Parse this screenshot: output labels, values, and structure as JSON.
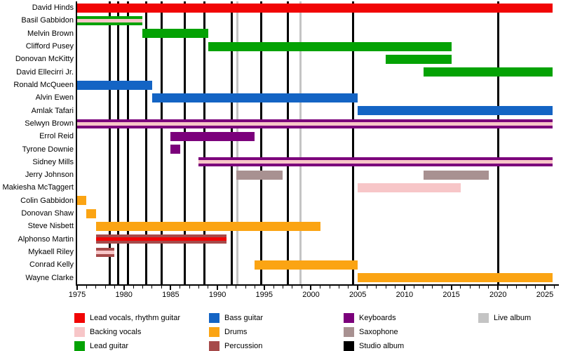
{
  "chart_data": {
    "type": "bar",
    "subtype": "band-membership-timeline",
    "xlim": [
      1975,
      2026.5
    ],
    "major_ticks": [
      1975,
      1980,
      1985,
      1990,
      1995,
      2000,
      2005,
      2010,
      2015,
      2020,
      2025
    ],
    "minor_tick_step": 1,
    "present_year": 2025.8,
    "grid": "album release vertical lines",
    "legend_position": "bottom",
    "colors": {
      "lead_vocals": "#f10505",
      "backing_vocals": "#f7c6c8",
      "lead_guitar": "#04a204",
      "bass_guitar": "#1464c4",
      "drums": "#fba413",
      "percussion": "#a64a4a",
      "keyboards": "#7b007b",
      "saxophone": "#a89191",
      "studio_album": "#000000",
      "live_album": "#c4c4c4"
    },
    "members": [
      {
        "name": "David Hinds",
        "bars": [
          {
            "start": 1975,
            "end": "present",
            "color": "lead_vocals"
          }
        ]
      },
      {
        "name": "Basil Gabbidon",
        "bars": [
          {
            "start": 1975,
            "end": 1982,
            "color": "lead_guitar",
            "stripe": "backing_vocals"
          }
        ]
      },
      {
        "name": "Melvin Brown",
        "bars": [
          {
            "start": 1982,
            "end": 1989,
            "color": "lead_guitar"
          }
        ]
      },
      {
        "name": "Clifford Pusey",
        "bars": [
          {
            "start": 1989,
            "end": 2015,
            "color": "lead_guitar"
          }
        ]
      },
      {
        "name": "Donovan McKitty",
        "bars": [
          {
            "start": 2008,
            "end": 2015,
            "color": "lead_guitar"
          }
        ]
      },
      {
        "name": "David Ellecirri Jr.",
        "bars": [
          {
            "start": 2012,
            "end": "present",
            "color": "lead_guitar"
          }
        ]
      },
      {
        "name": "Ronald McQueen",
        "bars": [
          {
            "start": 1975,
            "end": 1983,
            "color": "bass_guitar"
          }
        ]
      },
      {
        "name": "Alvin Ewen",
        "bars": [
          {
            "start": 1983,
            "end": 2005,
            "color": "bass_guitar"
          }
        ]
      },
      {
        "name": "Amlak Tafari",
        "bars": [
          {
            "start": 2005,
            "end": "present",
            "color": "bass_guitar"
          }
        ]
      },
      {
        "name": "Selwyn Brown",
        "bars": [
          {
            "start": 1975,
            "end": "present",
            "color": "keyboards",
            "stripe": "backing_vocals"
          }
        ]
      },
      {
        "name": "Errol Reid",
        "bars": [
          {
            "start": 1985,
            "end": 1994,
            "color": "keyboards"
          }
        ]
      },
      {
        "name": "Tyrone Downie",
        "bars": [
          {
            "start": 1985,
            "end": 1986,
            "color": "keyboards"
          }
        ]
      },
      {
        "name": "Sidney Mills",
        "bars": [
          {
            "start": 1988,
            "end": "present",
            "color": "keyboards",
            "stripe": "backing_vocals"
          }
        ]
      },
      {
        "name": "Jerry Johnson",
        "bars": [
          {
            "start": 1992,
            "end": 1997,
            "color": "saxophone"
          },
          {
            "start": 2012,
            "end": 2019,
            "color": "saxophone"
          }
        ]
      },
      {
        "name": "Makiesha McTaggert",
        "bars": [
          {
            "start": 2005,
            "end": 2016,
            "color": "backing_vocals"
          }
        ]
      },
      {
        "name": "Colin Gabbidon",
        "bars": [
          {
            "start": 1975,
            "end": 1976,
            "color": "drums"
          }
        ]
      },
      {
        "name": "Donovan Shaw",
        "bars": [
          {
            "start": 1976,
            "end": 1977,
            "color": "drums"
          }
        ]
      },
      {
        "name": "Steve Nisbett",
        "bars": [
          {
            "start": 1977,
            "end": 2001,
            "color": "drums"
          }
        ]
      },
      {
        "name": "Alphonso Martin",
        "bars": [
          {
            "start": 1977,
            "end": 1991,
            "color": "percussion",
            "stripe": "lead_vocals"
          }
        ]
      },
      {
        "name": "Mykaell Riley",
        "bars": [
          {
            "start": 1977,
            "end": 1979,
            "color": "percussion",
            "stripe": "backing_vocals"
          }
        ]
      },
      {
        "name": "Conrad Kelly",
        "bars": [
          {
            "start": 1994,
            "end": 2005,
            "color": "drums"
          }
        ]
      },
      {
        "name": "Wayne Clarke",
        "bars": [
          {
            "start": 2005,
            "end": "present",
            "color": "drums"
          }
        ]
      }
    ],
    "albums": {
      "studio": [
        1978.5,
        1979.4,
        1980.4,
        1982.4,
        1984.0,
        1986.5,
        1988.6,
        1991.5,
        1994.7,
        1997.5,
        2004.5,
        2020.0
      ],
      "live": [
        1992.1,
        1998.9
      ]
    },
    "legend": {
      "columns": [
        [
          {
            "label": "Lead vocals, rhythm guitar",
            "color_key": "lead_vocals"
          },
          {
            "label": "Backing vocals",
            "color_key": "backing_vocals"
          },
          {
            "label": "Lead guitar",
            "color_key": "lead_guitar"
          }
        ],
        [
          {
            "label": "Bass guitar",
            "color_key": "bass_guitar"
          },
          {
            "label": "Drums",
            "color_key": "drums"
          },
          {
            "label": "Percussion",
            "color_key": "percussion"
          }
        ],
        [
          {
            "label": "Keyboards",
            "color_key": "keyboards"
          },
          {
            "label": "Saxophone",
            "color_key": "saxophone"
          },
          {
            "label": "Studio album",
            "color_key": "studio_album"
          }
        ],
        [
          {
            "label": "Live album",
            "color_key": "live_album"
          }
        ]
      ]
    }
  }
}
